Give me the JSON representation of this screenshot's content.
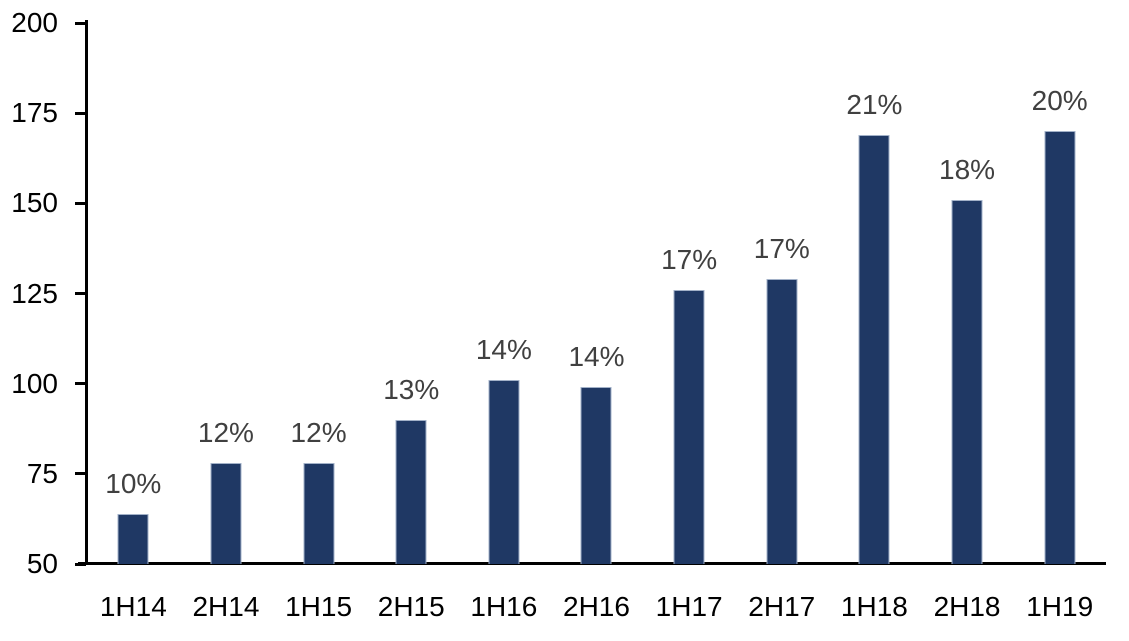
{
  "chart_data": {
    "type": "bar",
    "title": "",
    "xlabel": "",
    "ylabel": "",
    "categories": [
      "1H14",
      "2H14",
      "1H15",
      "2H15",
      "1H16",
      "2H16",
      "1H17",
      "2H17",
      "1H18",
      "2H18",
      "1H19"
    ],
    "values": [
      64,
      78,
      78,
      90,
      101,
      99,
      126,
      129,
      169,
      151,
      170
    ],
    "bar_labels": [
      "10%",
      "12%",
      "12%",
      "13%",
      "14%",
      "14%",
      "17%",
      "17%",
      "21%",
      "18%",
      "20%"
    ],
    "ylim": [
      50,
      200
    ],
    "yticks": [
      50,
      75,
      100,
      125,
      150,
      175,
      200
    ],
    "grid": false,
    "legend": false,
    "colors": {
      "bar_fill": "#1F3864",
      "bar_border": "#A2B1C8",
      "value_label": "#404040",
      "axis": "#000000",
      "tick_label": "#000000",
      "background": "#FFFFFF"
    }
  }
}
